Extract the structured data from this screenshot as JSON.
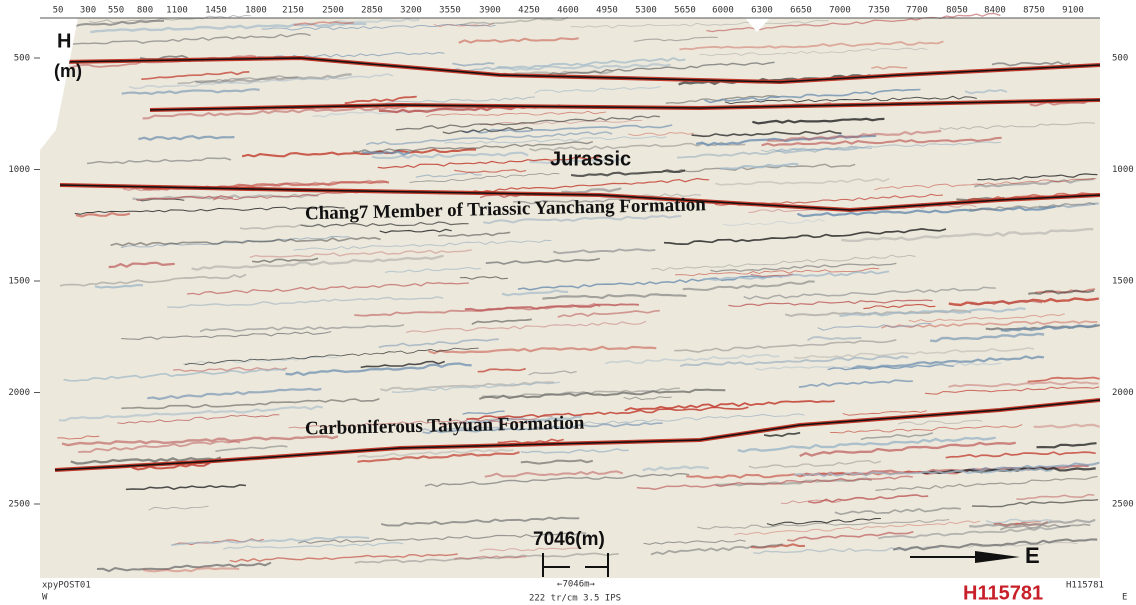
{
  "section": {
    "trace_labels": [
      50,
      300,
      550,
      800,
      1100,
      1450,
      1800,
      2150,
      2500,
      2850,
      3200,
      3550,
      3900,
      4250,
      4600,
      4950,
      5300,
      5650,
      6000,
      6300,
      6650,
      7000,
      7350,
      7700,
      8050,
      8400,
      8750,
      9100
    ],
    "depth_labels": [
      500,
      1000,
      1500,
      2000,
      2500
    ],
    "axis_title": "H",
    "axis_unit": "(m)",
    "annotations": {
      "jurassic": "Jurassic",
      "chang7": "Chang7 Member of Triassic Yanchang Formation",
      "taiyuan": "Carboniferous Taiyuan Formation",
      "scale": "7046(m)",
      "direction": "E"
    },
    "footer": {
      "left_name": "xpyPOST01",
      "left_side": "W",
      "scale_small": "←7046m→",
      "info": "222 tr/cm 3.5 IPS",
      "line_id": "H115781",
      "right_name": "H115781",
      "right_side": "E"
    }
  }
}
